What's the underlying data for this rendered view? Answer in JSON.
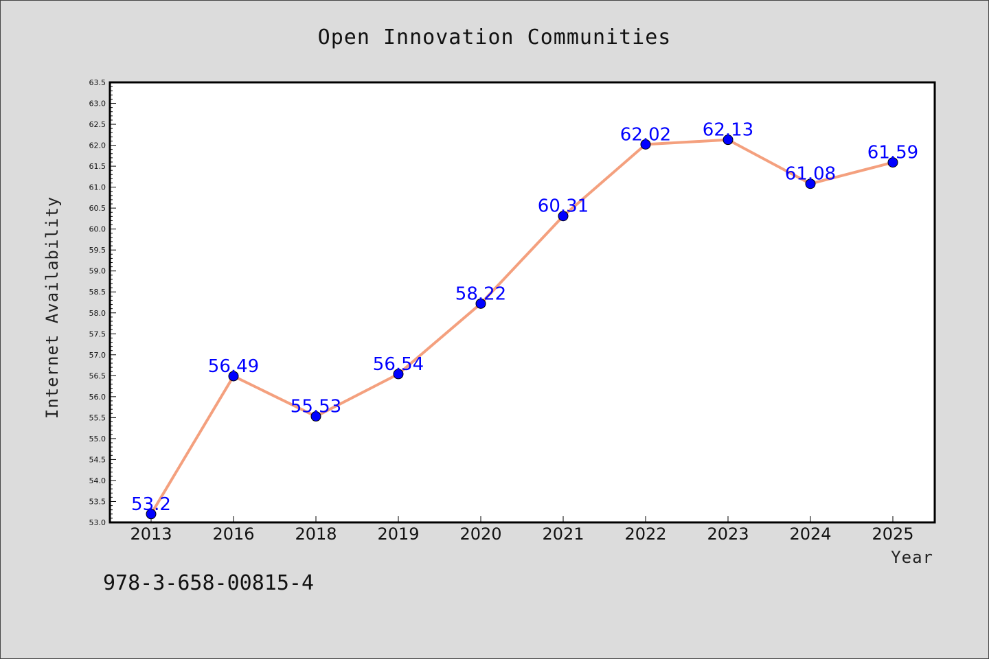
{
  "chart_data": {
    "type": "line",
    "title": "Open Innovation Communities",
    "xlabel": "Year",
    "ylabel": "Internet Availability",
    "categories": [
      "2013",
      "2016",
      "2018",
      "2019",
      "2020",
      "2021",
      "2022",
      "2023",
      "2024",
      "2025"
    ],
    "series": [
      {
        "values": [
          53.2,
          56.49,
          55.53,
          56.54,
          58.22,
          60.31,
          62.02,
          62.13,
          61.08,
          61.59
        ],
        "labels": [
          "53.2",
          "56.49",
          "55.53",
          "56.54",
          "58.22",
          "60.31",
          "62.02",
          "62.13",
          "61.08",
          "61.59"
        ],
        "line_color": "#f4a07e",
        "marker_color": "#0000ff"
      }
    ],
    "ylim": [
      53.0,
      63.5
    ],
    "yticks": [
      "53.0",
      "53.5",
      "54.0",
      "54.5",
      "55.0",
      "55.5",
      "56.0",
      "56.5",
      "57.0",
      "57.5",
      "58.0",
      "58.5",
      "59.0",
      "59.5",
      "60.0",
      "60.5",
      "61.0",
      "61.5",
      "62.0",
      "62.5",
      "63.0",
      "63.5"
    ],
    "grid": false,
    "legend": "none"
  },
  "footer": {
    "text": "978-3-658-00815-4"
  }
}
